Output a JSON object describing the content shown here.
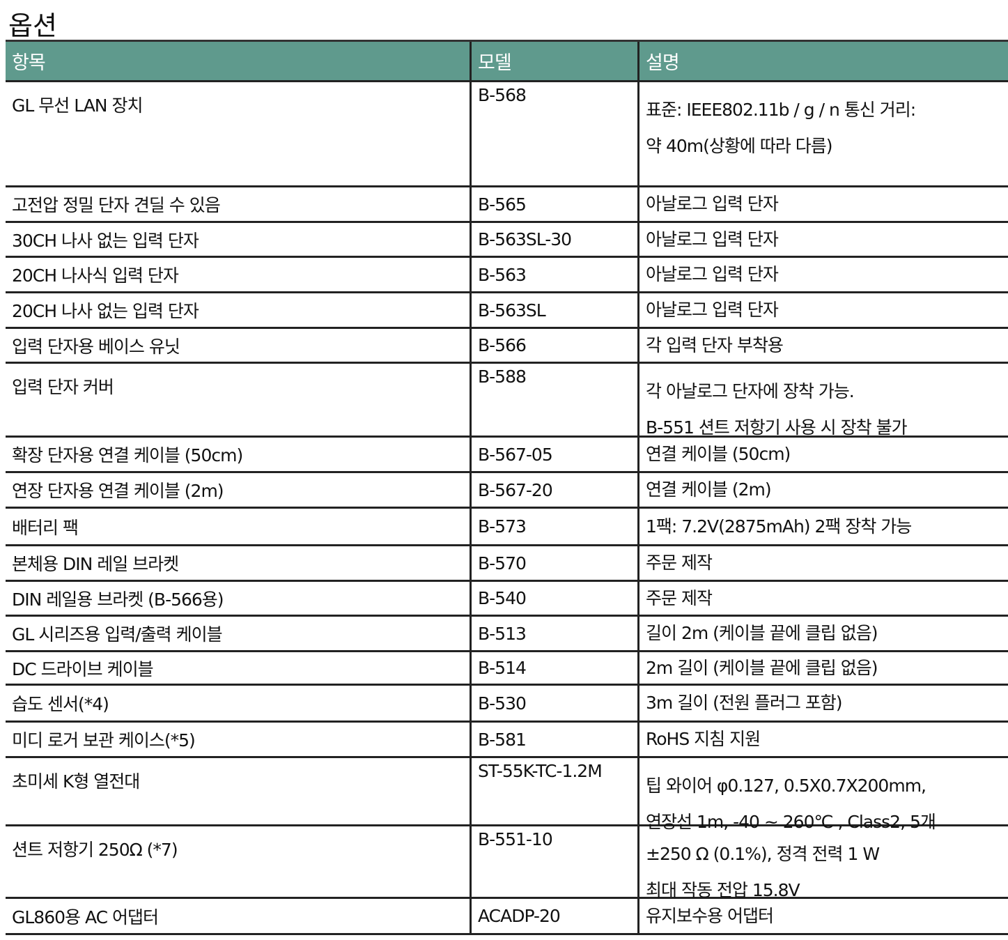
{
  "title": "옵션",
  "table": {
    "headers": [
      "항목",
      "모델",
      "설명"
    ],
    "rows": [
      {
        "item": "GL 무선 LAN 장치",
        "model": "B-568",
        "description": [
          "표준: IEEE802.11b / g / n 통신 거리:",
          "약 40m(상황에 따라 다름)"
        ]
      },
      {
        "item": "고전압 정밀 단자 견딜 수 있음",
        "model": "B-565",
        "description": [
          "아날로그 입력 단자"
        ]
      },
      {
        "item": "30CH 나사 없는 입력 단자",
        "model": "B-563SL-30",
        "description": [
          "아날로그 입력 단자"
        ]
      },
      {
        "item": "20CH 나사식 입력 단자",
        "model": "B-563",
        "description": [
          "아날로그 입력 단자"
        ]
      },
      {
        "item": "20CH 나사 없는 입력 단자",
        "model": "B-563SL",
        "description": [
          "아날로그 입력 단자"
        ]
      },
      {
        "item": "입력 단자용 베이스 유닛",
        "model": "B-566",
        "description": [
          "각 입력 단자 부착용"
        ]
      },
      {
        "item": "입력 단자 커버",
        "model": "B-588",
        "description": [
          "각 아날로그 단자에 장착 가능.",
          "B-551 션트 저항기 사용 시 장착 불가"
        ]
      },
      {
        "item": "확장 단자용 연결 케이블 (50cm)",
        "model": "B-567-05",
        "description": [
          "연결 케이블 (50cm)"
        ]
      },
      {
        "item": "연장 단자용 연결 케이블 (2m)",
        "model": "B-567-20",
        "description": [
          "연결 케이블 (2m)"
        ]
      },
      {
        "item": "배터리 팩",
        "model": "B-573",
        "description": [
          "1팩: 7.2V(2875mAh) 2팩 장착 가능"
        ]
      },
      {
        "item": "본체용 DIN 레일 브라켓",
        "model": "B-570",
        "description": [
          "주문 제작"
        ]
      },
      {
        "item": "DIN 레일용 브라켓 (B-566용)",
        "model": "B-540",
        "description": [
          "주문 제작"
        ]
      },
      {
        "item": "GL 시리즈용 입력/출력 케이블",
        "model": "B-513",
        "description": [
          "길이 2m (케이블 끝에 클립 없음)"
        ]
      },
      {
        "item": "DC 드라이브 케이블",
        "model": "B-514",
        "description": [
          "2m 길이 (케이블 끝에 클립 없음)"
        ]
      },
      {
        "item": "습도 센서(*4)",
        "model": "B-530",
        "description": [
          "3m 길이 (전원 플러그 포함)"
        ]
      },
      {
        "item": "미디 로거 보관 케이스(*5)",
        "model": "B-581",
        "description": [
          "RoHS 지침 지원"
        ]
      },
      {
        "item": "초미세 K형 열전대",
        "model": "ST-55K-TC-1.2M",
        "description": [
          "팁 와이어 φ0.127, 0.5X0.7X200mm,",
          "연장선 1m, -40 ~ 260℃ , Class2, 5개"
        ]
      },
      {
        "item": "션트 저항기 250Ω (*7)",
        "model": "B-551-10",
        "description": [
          "±250 Ω (0.1%), 정격 전력 1 W",
          "최대 작동 전압 15.8V"
        ]
      },
      {
        "item": "GL860용 AC 어댑터",
        "model": "ACADP-20",
        "description": [
          "유지보수용 어댑터"
        ]
      }
    ]
  }
}
